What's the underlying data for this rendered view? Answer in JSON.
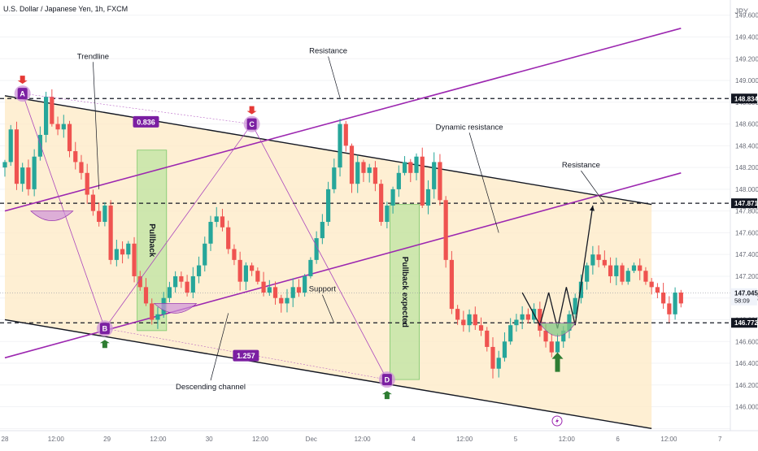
{
  "header": {
    "symbol_title": "U.S. Dollar / Japanese Yen, 1h, FXCM",
    "currency": "JPY"
  },
  "colors": {
    "bull": "#26a69a",
    "bear": "#ef5350",
    "channel_fill": "#fde9c4",
    "trend": "#9c27b0",
    "channel_line": "#131722",
    "pullback_box": "#a5e08f",
    "label_bg": "#7b1fa2",
    "arrow_up": "#2e7d32",
    "arrow_down": "#e53935",
    "marker_circle": "#ce93d8",
    "last_price_bg": "#131722"
  },
  "chart_data": {
    "type": "candlestick",
    "x_ticks": [
      "28",
      "12:00",
      "29",
      "12:00",
      "30",
      "12:00",
      "Dec",
      "12:00",
      "4",
      "12:00",
      "5",
      "12:00",
      "6",
      "12:00",
      "7"
    ],
    "y_ticks": [
      "149.600",
      "149.400",
      "149.200",
      "149.000",
      "148.800",
      "148.600",
      "148.400",
      "148.200",
      "148.000",
      "147.800",
      "147.600",
      "147.400",
      "147.200",
      "147.000",
      "146.800",
      "146.600",
      "146.400",
      "146.200",
      "146.000",
      "145.800"
    ],
    "ylim": [
      145.78,
      149.74
    ],
    "close_path": [
      148.25,
      148.55,
      148.05,
      148.2,
      148.0,
      148.3,
      148.5,
      148.85,
      148.6,
      148.55,
      148.6,
      148.35,
      148.25,
      148.15,
      147.95,
      147.8,
      147.7,
      147.85,
      147.35,
      147.45,
      147.4,
      147.5,
      147.2,
      147.1,
      146.95,
      146.8,
      146.85,
      147.0,
      147.1,
      147.2,
      147.15,
      147.05,
      147.2,
      147.3,
      147.5,
      147.7,
      147.75,
      147.65,
      147.45,
      147.35,
      147.15,
      147.3,
      147.25,
      147.15,
      147.05,
      147.1,
      147.0,
      146.95,
      147.0,
      147.1,
      147.05,
      147.2,
      147.35,
      147.55,
      147.7,
      148.0,
      148.2,
      148.6,
      148.4,
      148.05,
      148.25,
      148.15,
      148.2,
      148.05,
      147.7,
      147.85,
      148.0,
      148.15,
      148.25,
      148.15,
      148.3,
      147.85,
      148.0,
      148.25,
      147.9,
      147.35,
      146.9,
      146.8,
      146.75,
      146.85,
      146.75,
      146.7,
      146.55,
      146.35,
      146.45,
      146.6,
      146.75,
      146.8,
      146.85,
      146.8,
      146.9,
      146.7,
      146.6,
      146.5,
      146.6,
      146.7,
      146.85,
      147.0,
      147.15,
      147.3,
      147.4,
      147.35,
      147.3,
      147.2,
      147.3,
      147.15,
      147.25,
      147.3,
      147.25,
      147.15,
      147.1,
      147.05,
      146.95,
      146.85,
      147.05,
      146.95
    ],
    "levels": [
      {
        "label": "148.834",
        "price": 148.834
      },
      {
        "label": "147.871",
        "price": 147.871
      },
      {
        "label": "146.772",
        "price": 146.772
      }
    ],
    "last_price": {
      "label": "147.045",
      "price": 147.045,
      "countdown": "58:09"
    },
    "channel": {
      "upper": [
        [
          0,
          148.86
        ],
        [
          110,
          147.86
        ]
      ],
      "lower": [
        [
          0,
          146.8
        ],
        [
          110,
          145.8
        ]
      ]
    },
    "trendlines": [
      {
        "from": [
          0,
          147.8
        ],
        "to": [
          115,
          149.48
        ]
      },
      {
        "from": [
          0,
          146.45
        ],
        "to": [
          115,
          148.15
        ]
      }
    ],
    "pivots": [
      {
        "label": "A",
        "i": 3,
        "price": 148.88
      },
      {
        "label": "B",
        "i": 17,
        "price": 146.72
      },
      {
        "label": "C",
        "i": 42,
        "price": 148.6
      },
      {
        "label": "D",
        "i": 65,
        "price": 146.25
      }
    ],
    "fib_labels": [
      {
        "text": "0.836",
        "i": 24,
        "price": 148.62
      },
      {
        "text": "1.257",
        "i": 41,
        "price": 146.47
      }
    ],
    "pullback_boxes": [
      {
        "text": "Pullback",
        "i0": 23,
        "i1": 27,
        "top": 148.36,
        "bottom": 146.7
      },
      {
        "text": "Pullback expected",
        "i0": 66,
        "i1": 70,
        "top": 147.86,
        "bottom": 146.25
      }
    ],
    "projection": [
      [
        88,
        147.05
      ],
      [
        91,
        146.75
      ],
      [
        92.5,
        147.05
      ],
      [
        94,
        146.72
      ],
      [
        95.5,
        147.1
      ],
      [
        97,
        146.75
      ],
      [
        100,
        147.85
      ]
    ],
    "annotations": [
      {
        "text": "Trendline",
        "i": 15,
        "price": 149.2
      },
      {
        "text": "Resistance",
        "i": 55,
        "price": 149.25
      },
      {
        "text": "Dynamic resistance",
        "i": 79,
        "price": 148.55
      },
      {
        "text": "Resistance",
        "i": 98,
        "price": 148.2
      },
      {
        "text": "Support",
        "i": 54,
        "price": 147.06
      },
      {
        "text": "Descending channel",
        "i": 35,
        "price": 146.16
      }
    ]
  }
}
